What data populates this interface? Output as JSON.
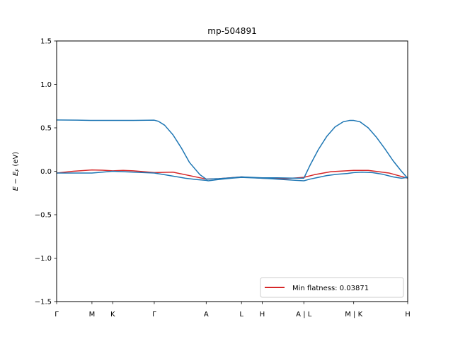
{
  "chart_data": {
    "type": "line",
    "title": "mp-504891",
    "xlabel": "",
    "ylabel": "E − E_F (eV)",
    "ylim": [
      -1.5,
      1.5
    ],
    "yticks": [
      1.5,
      1.0,
      0.5,
      0.0,
      -0.5,
      -1.0,
      -1.5
    ],
    "ytick_labels": [
      "1.5",
      "1.0",
      "0.5",
      "0.0",
      "−0.5",
      "−1.0",
      "−1.5"
    ],
    "xlim": [
      0,
      8.45
    ],
    "xticks": [
      0,
      0.85,
      1.35,
      2.35,
      3.6,
      4.45,
      4.95,
      5.95,
      7.15,
      8.45
    ],
    "xtick_labels": [
      "Γ",
      "M",
      "K",
      "Γ",
      "A",
      "L",
      "H",
      "A | L",
      "M | K",
      "H"
    ],
    "grid": false,
    "legend": {
      "position": "lower-right",
      "entries": [
        "Min flatness: 0.03871"
      ]
    },
    "colors": {
      "flat_band": "#d62728",
      "band": "#1f77b4"
    },
    "series": [
      {
        "name": "Min flatness: 0.03871",
        "color": "#d62728",
        "x": [
          0,
          0.4,
          0.85,
          1.1,
          1.35,
          1.6,
          1.85,
          2.35,
          2.8,
          3.6,
          3.9,
          4.45,
          4.95,
          5.5,
          5.95,
          6.2,
          6.6,
          7.15,
          7.5,
          8.0,
          8.45
        ],
        "y": [
          -0.02,
          0.0,
          0.015,
          0.012,
          0.005,
          0.01,
          0.005,
          -0.015,
          -0.01,
          -0.09,
          -0.085,
          -0.065,
          -0.08,
          -0.085,
          -0.07,
          -0.04,
          -0.005,
          0.01,
          0.01,
          -0.02,
          -0.08
        ]
      },
      {
        "name": "",
        "color": "#1f77b4",
        "x": [
          0,
          0.5,
          0.85,
          1.1,
          1.35,
          1.6,
          1.85,
          2.35,
          2.6,
          2.85,
          3.1,
          3.35,
          3.6,
          3.65,
          3.9,
          4.2,
          4.45,
          4.7,
          4.95,
          5.3,
          5.6,
          5.95,
          6.1,
          6.3,
          6.5,
          6.75,
          7.0,
          7.15,
          7.35,
          7.6,
          7.85,
          8.1,
          8.3,
          8.45
        ],
        "y": [
          -0.02,
          -0.02,
          -0.02,
          -0.01,
          0.0,
          -0.005,
          -0.01,
          -0.02,
          -0.04,
          -0.06,
          -0.08,
          -0.095,
          -0.105,
          -0.11,
          -0.095,
          -0.08,
          -0.07,
          -0.075,
          -0.08,
          -0.09,
          -0.1,
          -0.11,
          -0.09,
          -0.07,
          -0.05,
          -0.035,
          -0.025,
          -0.015,
          -0.01,
          -0.015,
          -0.035,
          -0.065,
          -0.08,
          -0.07
        ]
      },
      {
        "name": "",
        "color": "#1f77b4",
        "x": [
          0,
          0.5,
          0.85,
          1.35,
          1.85,
          2.35,
          2.45,
          2.6,
          2.8,
          3.0,
          3.2,
          3.45,
          3.6,
          3.9,
          4.2,
          4.45,
          4.7,
          4.95,
          5.3,
          5.6,
          5.95,
          5.97,
          6.1,
          6.3,
          6.5,
          6.7,
          6.9,
          7.05,
          7.15,
          7.3,
          7.5,
          7.7,
          7.9,
          8.1,
          8.3,
          8.45
        ],
        "y": [
          0.59,
          0.588,
          0.585,
          0.585,
          0.585,
          0.588,
          0.575,
          0.53,
          0.42,
          0.27,
          0.1,
          -0.04,
          -0.09,
          -0.085,
          -0.075,
          -0.065,
          -0.07,
          -0.075,
          -0.075,
          -0.078,
          -0.08,
          -0.06,
          0.07,
          0.25,
          0.4,
          0.51,
          0.57,
          0.585,
          0.585,
          0.57,
          0.5,
          0.39,
          0.26,
          0.12,
          0.0,
          -0.08
        ]
      }
    ]
  }
}
